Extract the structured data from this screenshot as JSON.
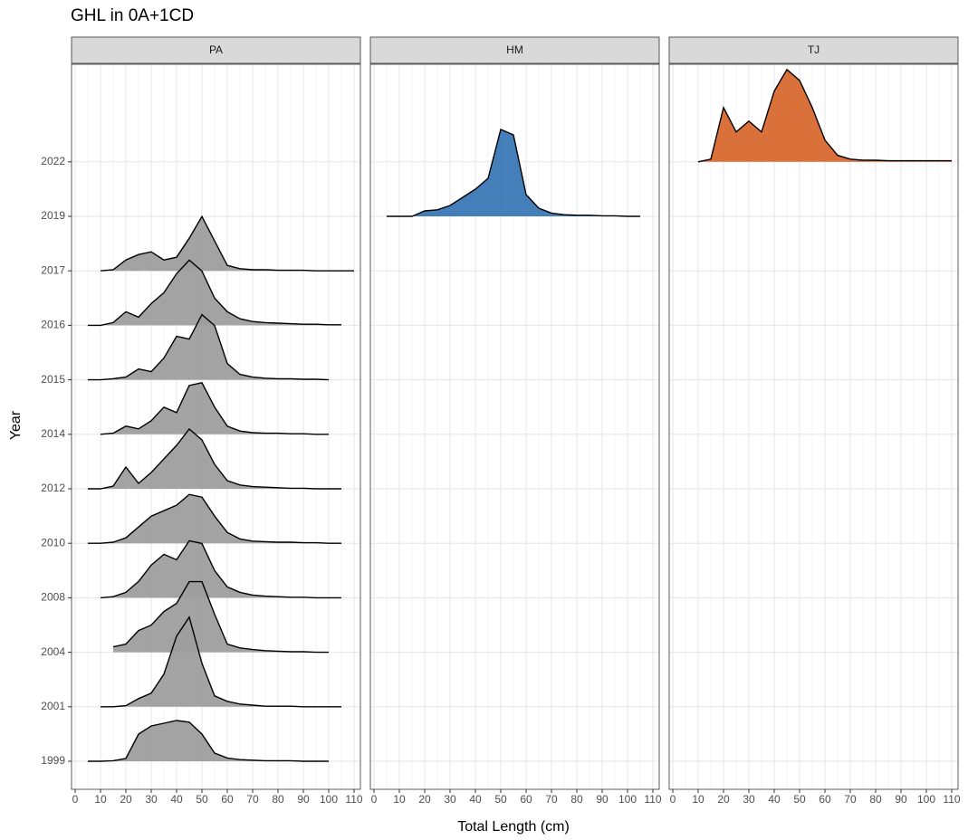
{
  "chart_data": {
    "type": "ridgeline",
    "title": "GHL in 0A+1CD",
    "x_label": "Total Length (cm)",
    "y_label": "Year",
    "categories": [
      "1999",
      "2001",
      "2004",
      "2008",
      "2010",
      "2012",
      "2014",
      "2015",
      "2016",
      "2017",
      "2019",
      "2022"
    ],
    "x": [
      0,
      5,
      10,
      15,
      20,
      25,
      30,
      35,
      40,
      45,
      50,
      55,
      60,
      65,
      70,
      75,
      80,
      85,
      90,
      95,
      100,
      105,
      110
    ],
    "xlim": [
      0,
      110
    ],
    "xticks": [
      0,
      10,
      20,
      30,
      40,
      50,
      60,
      70,
      80,
      90,
      100,
      110
    ],
    "grid": true,
    "panels": [
      {
        "name": "PA",
        "color": "#9e9e9e",
        "ridges": [
          [
            null,
            0,
            0,
            0.01,
            0.05,
            0.5,
            0.65,
            0.7,
            0.75,
            0.72,
            0.5,
            0.15,
            0.06,
            0.03,
            0.02,
            0.01,
            0.01,
            0.01,
            0,
            0,
            0,
            null,
            null
          ],
          [
            null,
            null,
            0,
            0,
            0.02,
            0.15,
            0.25,
            0.6,
            1.3,
            1.65,
            0.8,
            0.2,
            0.1,
            0.05,
            0.03,
            0.01,
            0.01,
            0.01,
            0,
            0,
            0,
            0,
            null
          ],
          [
            null,
            null,
            null,
            0.1,
            0.15,
            0.4,
            0.5,
            0.75,
            0.9,
            1.3,
            1.3,
            0.7,
            0.15,
            0.08,
            0.05,
            0.03,
            0.02,
            0.01,
            0.01,
            0,
            0,
            null,
            null
          ],
          [
            null,
            null,
            0,
            0.02,
            0.1,
            0.3,
            0.6,
            0.8,
            0.7,
            1.05,
            1.0,
            0.5,
            0.2,
            0.1,
            0.05,
            0.03,
            0.02,
            0.01,
            0.01,
            0,
            0,
            0,
            null
          ],
          [
            null,
            0,
            0,
            0.02,
            0.1,
            0.3,
            0.5,
            0.6,
            0.7,
            0.9,
            0.85,
            0.5,
            0.2,
            0.08,
            0.04,
            0.03,
            0.02,
            0.02,
            0.01,
            0.01,
            0,
            0,
            null
          ],
          [
            null,
            0,
            0,
            0.05,
            0.4,
            0.1,
            0.3,
            0.55,
            0.8,
            1.1,
            0.9,
            0.45,
            0.15,
            0.07,
            0.04,
            0.03,
            0.02,
            0.01,
            0.01,
            0,
            0,
            0,
            null
          ],
          [
            null,
            null,
            0,
            0.02,
            0.15,
            0.1,
            0.25,
            0.5,
            0.4,
            0.9,
            0.95,
            0.5,
            0.15,
            0.06,
            0.03,
            0.02,
            0.02,
            0.01,
            0.01,
            0,
            0,
            null,
            null
          ],
          [
            null,
            0,
            0,
            0.02,
            0.05,
            0.2,
            0.15,
            0.4,
            0.8,
            0.75,
            1.2,
            1.0,
            0.3,
            0.1,
            0.05,
            0.03,
            0.02,
            0.02,
            0.01,
            0.01,
            0,
            null,
            null
          ],
          [
            null,
            0,
            0,
            0.05,
            0.25,
            0.15,
            0.4,
            0.6,
            0.95,
            1.2,
            1.0,
            0.5,
            0.25,
            0.12,
            0.07,
            0.05,
            0.04,
            0.03,
            0.02,
            0.02,
            0.01,
            0.01,
            null
          ],
          [
            null,
            null,
            0,
            0.02,
            0.2,
            0.3,
            0.35,
            0.2,
            0.25,
            0.6,
            1.0,
            0.55,
            0.1,
            0.04,
            0.02,
            0.02,
            0.01,
            0.01,
            0.01,
            0,
            0,
            0,
            0
          ],
          null,
          null
        ]
      },
      {
        "name": "HM",
        "color": "#3a78b5",
        "ridges": [
          null,
          null,
          null,
          null,
          null,
          null,
          null,
          null,
          null,
          null,
          [
            null,
            0,
            0,
            0,
            0.1,
            0.12,
            0.2,
            0.35,
            0.5,
            0.7,
            1.6,
            1.5,
            0.4,
            0.15,
            0.06,
            0.03,
            0.02,
            0.02,
            0.01,
            0.01,
            0,
            0,
            null
          ],
          null
        ]
      },
      {
        "name": "TJ",
        "color": "#d9692f",
        "ridges": [
          null,
          null,
          null,
          null,
          null,
          null,
          null,
          null,
          null,
          null,
          null,
          [
            null,
            null,
            0,
            0.05,
            1.0,
            0.55,
            0.75,
            0.55,
            1.3,
            1.7,
            1.5,
            1.0,
            0.4,
            0.12,
            0.05,
            0.03,
            0.03,
            0.02,
            0.02,
            0.02,
            0.02,
            0.02,
            0.02
          ]
        ]
      }
    ]
  }
}
